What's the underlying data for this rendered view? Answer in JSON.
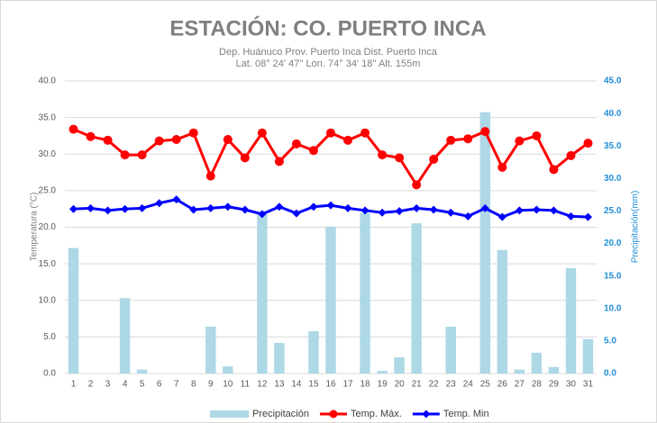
{
  "chart_data": {
    "type": "combo",
    "title": "ESTACIÓN: CO. PUERTO INCA",
    "subtitle": [
      "Dep. Huánuco Prov. Puerto Inca  Dist. Puerto Inca",
      "Lat. 08° 24' 47'' Lon. 74° 34' 18'' Alt. 155m"
    ],
    "y_label": "Temperatura (°C)",
    "y2_label": "Precipitación(mm)",
    "categories": [
      "1",
      "2",
      "3",
      "4",
      "5",
      "6",
      "7",
      "8",
      "9",
      "10",
      "11",
      "12",
      "13",
      "14",
      "15",
      "16",
      "17",
      "18",
      "19",
      "20",
      "21",
      "22",
      "23",
      "24",
      "25",
      "26",
      "27",
      "28",
      "29",
      "30",
      "31"
    ],
    "series": [
      {
        "name": "Precipitación",
        "type": "bar",
        "axis": "y2",
        "color": "#add8e6",
        "values": [
          19.3,
          0,
          0,
          11.6,
          0.6,
          0,
          0,
          0,
          7.2,
          1.1,
          0,
          24.5,
          4.7,
          0,
          6.5,
          22.6,
          0,
          24.7,
          0.4,
          2.5,
          23.1,
          0,
          7.2,
          0,
          40.2,
          19.0,
          0.6,
          3.2,
          1.0,
          16.2,
          5.3
        ]
      },
      {
        "name": "Temp. Máx.",
        "type": "line",
        "marker": "circle",
        "color": "#ff0000",
        "values": [
          33.4,
          32.4,
          31.9,
          29.9,
          29.9,
          31.8,
          32.0,
          32.9,
          27.0,
          32.0,
          29.5,
          32.9,
          29.0,
          31.4,
          30.5,
          32.9,
          31.9,
          32.9,
          29.9,
          29.5,
          25.8,
          29.3,
          31.9,
          32.1,
          33.1,
          28.2,
          31.8,
          32.5,
          27.9,
          29.8,
          31.5
        ]
      },
      {
        "name": "Temp. Min",
        "type": "line",
        "marker": "diamond",
        "color": "#0000ff",
        "values": [
          22.5,
          22.6,
          22.3,
          22.5,
          22.6,
          23.3,
          23.8,
          22.4,
          22.6,
          22.8,
          22.4,
          21.8,
          22.8,
          21.9,
          22.8,
          23.0,
          22.6,
          22.3,
          22.0,
          22.2,
          22.6,
          22.4,
          22.0,
          21.5,
          22.6,
          21.4,
          22.3,
          22.4,
          22.3,
          21.5,
          21.4
        ]
      }
    ],
    "ylim": [
      0,
      40
    ],
    "yticks": [
      {
        "value": 0,
        "label": "0.0"
      },
      {
        "value": 5,
        "label": "5.0"
      },
      {
        "value": 10,
        "label": "10.0"
      },
      {
        "value": 15,
        "label": "15.0"
      },
      {
        "value": 20,
        "label": "20.0"
      },
      {
        "value": 25,
        "label": "25.0"
      },
      {
        "value": 30,
        "label": "30.0"
      },
      {
        "value": 35,
        "label": "35.0"
      },
      {
        "value": 40,
        "label": "40.0"
      }
    ],
    "y2lim": [
      0,
      45
    ],
    "y2ticks": [
      {
        "value": 0,
        "label": "0.0"
      },
      {
        "value": 5,
        "label": "5.0"
      },
      {
        "value": 10,
        "label": "10.0"
      },
      {
        "value": 15,
        "label": "15.0"
      },
      {
        "value": 20,
        "label": "20.0"
      },
      {
        "value": 25,
        "label": "25.0"
      },
      {
        "value": 30,
        "label": "30.0"
      },
      {
        "value": 35,
        "label": "35.0"
      },
      {
        "value": 40,
        "label": "40.0"
      },
      {
        "value": 45,
        "label": "45.0"
      }
    ],
    "y2_color": "#1f8dd6",
    "grid": true,
    "legend": "bottom"
  }
}
